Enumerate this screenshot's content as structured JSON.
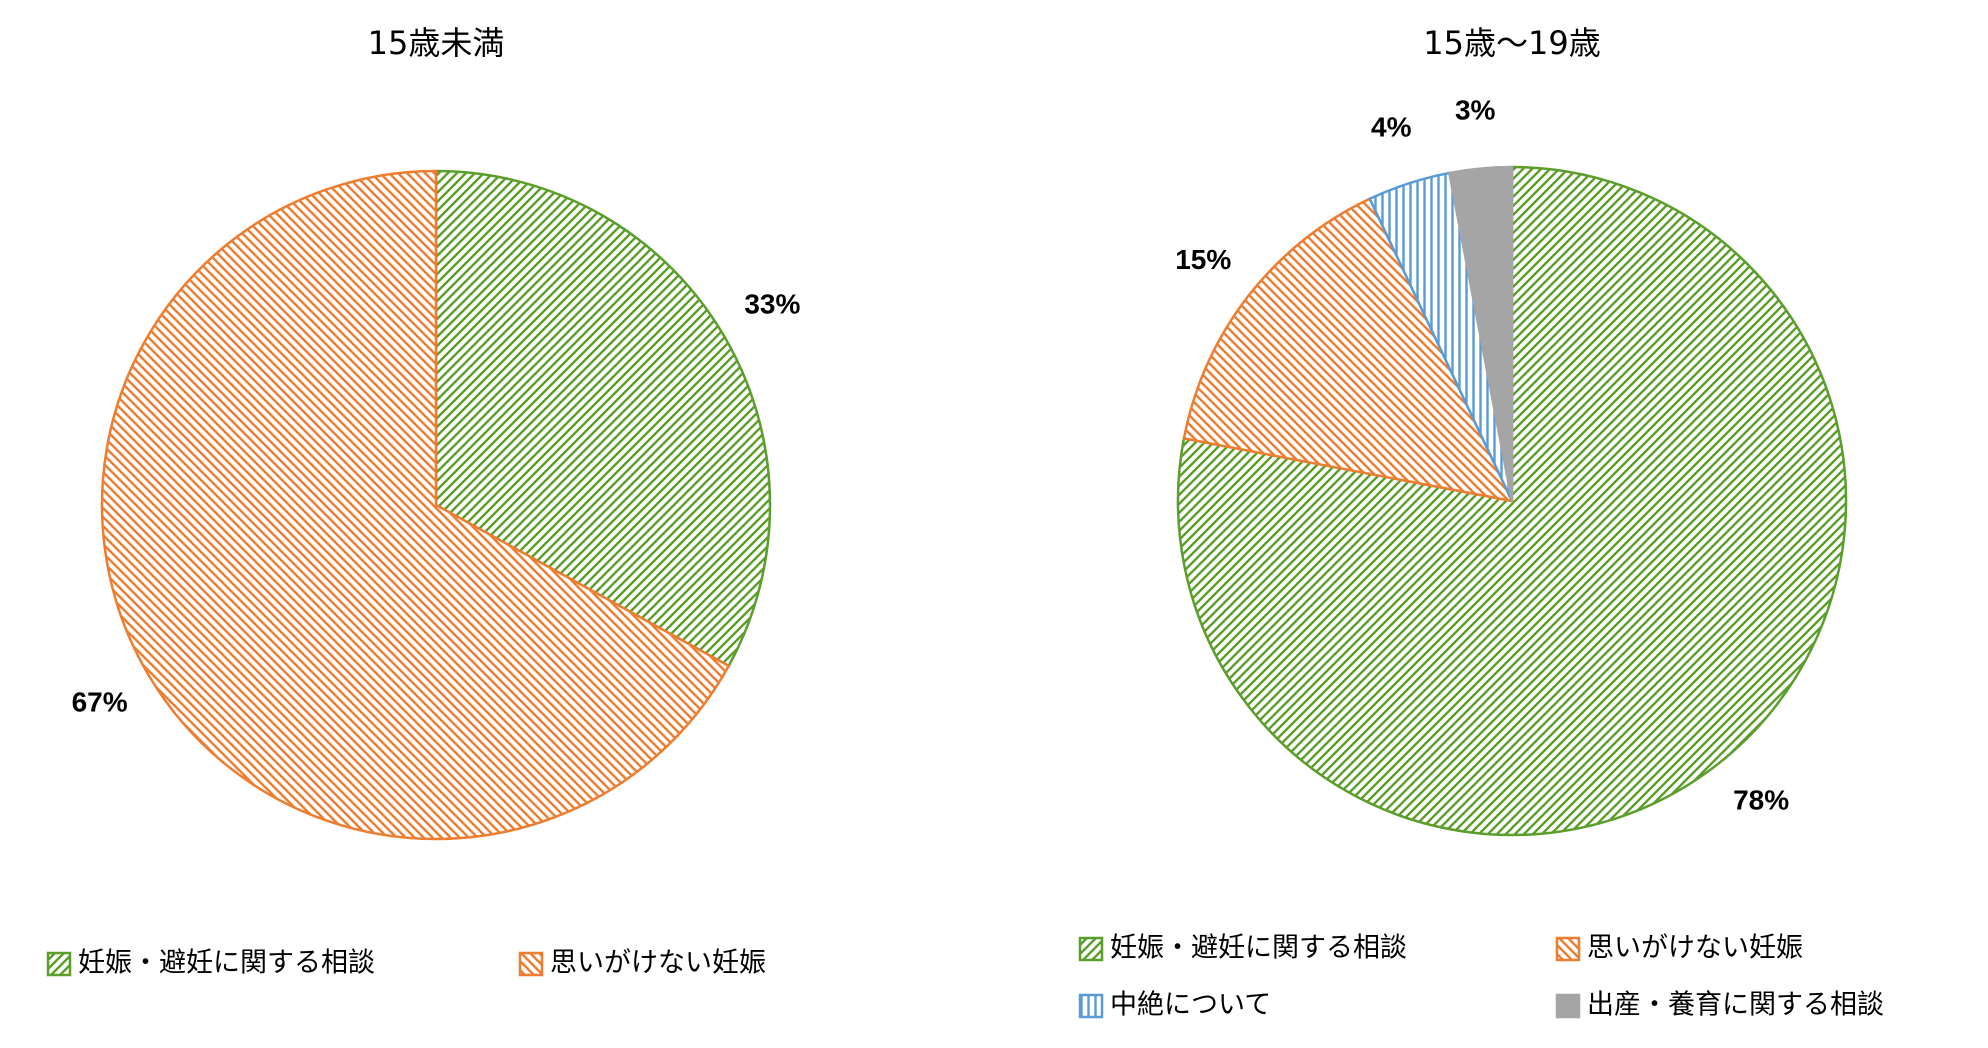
{
  "chart_data": [
    {
      "type": "pie",
      "title": "15歳未満",
      "categories": [
        "妊娠・避妊に関する相談",
        "思いがけない妊娠"
      ],
      "values": [
        33,
        67
      ],
      "value_labels": [
        "33%",
        "67%"
      ],
      "colors": [
        "#5b9e2b",
        "#ed7d31"
      ],
      "patterns": [
        "diag-up",
        "diag-down"
      ]
    },
    {
      "type": "pie",
      "title": "15歳～19歳",
      "categories": [
        "妊娠・避妊に関する相談",
        "思いがけない妊娠",
        "中絶について",
        "出産・養育に関する相談"
      ],
      "values": [
        78,
        15,
        4,
        3
      ],
      "value_labels": [
        "78%",
        "15%",
        "4%",
        "3%"
      ],
      "colors": [
        "#5b9e2b",
        "#ed7d31",
        "#5b9bd5",
        "#a5a5a5"
      ],
      "patterns": [
        "diag-up",
        "diag-down",
        "vertical",
        "solid"
      ]
    }
  ]
}
